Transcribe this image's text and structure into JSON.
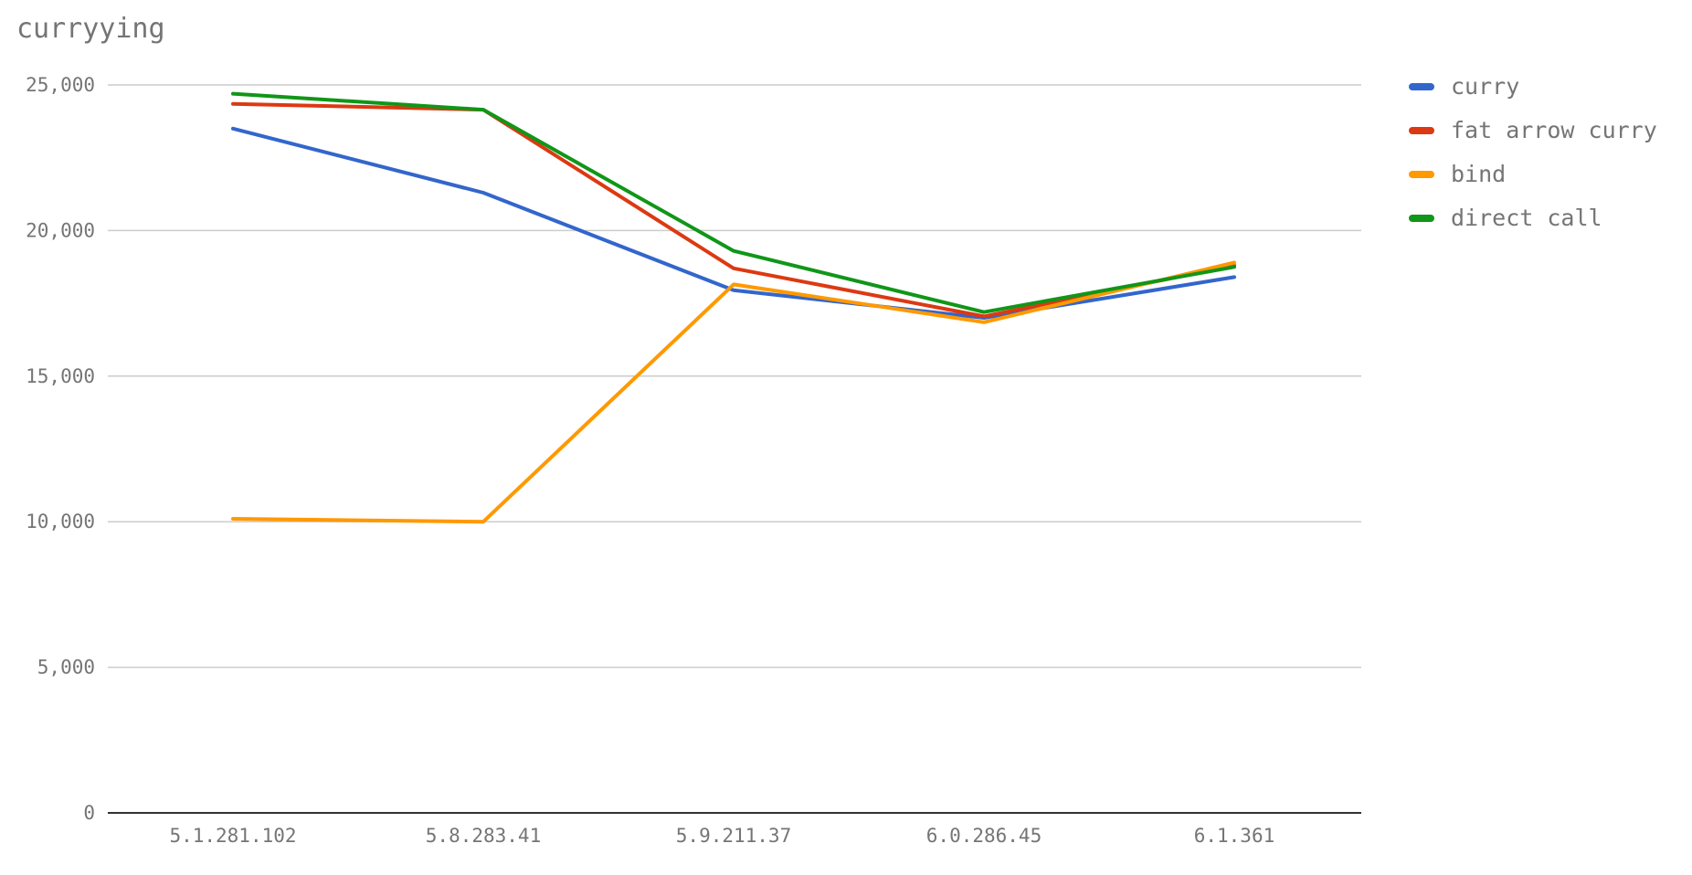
{
  "chart_data": {
    "type": "line",
    "title": "curryying",
    "xlabel": "",
    "ylabel": "",
    "categories": [
      "5.1.281.102",
      "5.8.283.41",
      "5.9.211.37",
      "6.0.286.45",
      "6.1.361"
    ],
    "ylim": [
      0,
      25000
    ],
    "yticks": [
      0,
      5000,
      10000,
      15000,
      20000,
      25000
    ],
    "ytick_labels": [
      "0",
      "5,000",
      "10,000",
      "15,000",
      "20,000",
      "25,000"
    ],
    "grid": true,
    "legend_position": "right",
    "series": [
      {
        "name": "curry",
        "color": "#3366cc",
        "values": [
          23500,
          21300,
          17950,
          17000,
          18400
        ]
      },
      {
        "name": "fat arrow curry",
        "color": "#dc3912",
        "values": [
          24350,
          24150,
          18700,
          17050,
          18800
        ]
      },
      {
        "name": "bind",
        "color": "#ff9900",
        "values": [
          10100,
          10000,
          18150,
          16850,
          18900
        ]
      },
      {
        "name": "direct call",
        "color": "#109618",
        "values": [
          24700,
          24150,
          19300,
          17200,
          18750
        ]
      }
    ]
  }
}
